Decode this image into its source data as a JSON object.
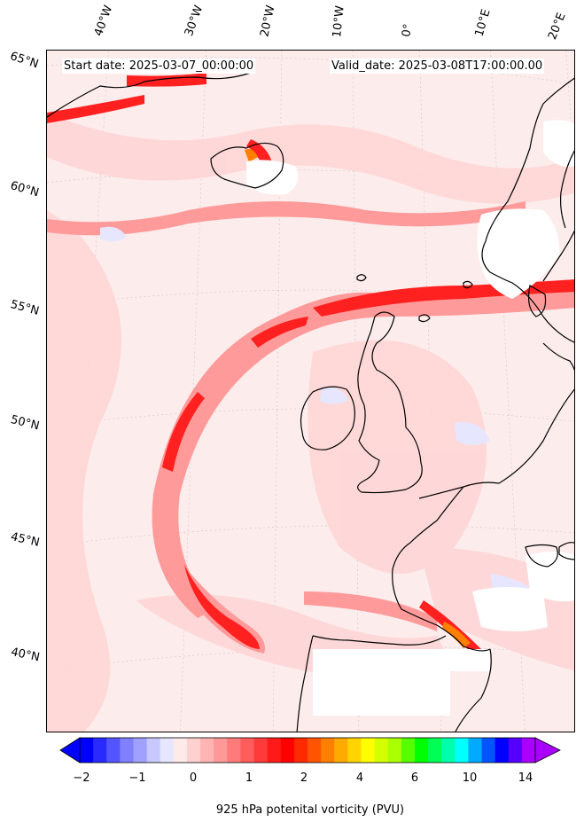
{
  "header": {
    "start_date": "Start date: 2025-03-07_00:00:00",
    "valid_date": "Valid_date: 2025-03-08T17:00:00.00"
  },
  "longitude_labels": [
    "40°W",
    "30°W",
    "20°W",
    "10°W",
    "0°",
    "10°E",
    "20°E"
  ],
  "latitude_labels": [
    "65°N",
    "60°N",
    "55°N",
    "50°N",
    "45°N",
    "40°N"
  ],
  "colorbar": {
    "title": "925 hPa potenital vorticity (PVU)",
    "tick_labels": [
      "−2",
      "−1",
      "0",
      "1",
      "2",
      "4",
      "6",
      "10",
      "14"
    ],
    "colors": [
      "#0000ff",
      "#2a2aff",
      "#5555ff",
      "#7f7fff",
      "#a0a0ff",
      "#c8c8ff",
      "#e6e6ff",
      "#ffeaea",
      "#ffd0d0",
      "#ffb4b4",
      "#ff9898",
      "#ff7a7a",
      "#ff5c5c",
      "#ff3a3a",
      "#ff1a1a",
      "#ff0000",
      "#ff2a00",
      "#ff5500",
      "#ff7f00",
      "#ffaa00",
      "#ffd400",
      "#ffff00",
      "#d4ff00",
      "#aaff00",
      "#55ff00",
      "#00ff00",
      "#00ff55",
      "#00ffaa",
      "#00ffff",
      "#00aaff",
      "#0055ff",
      "#0000ff",
      "#5500ff",
      "#aa00ff"
    ]
  },
  "colors": {
    "background": "#fdecec",
    "low_pv": "#ffcccc",
    "mid_pv": "#ff8888",
    "high_pv": "#ff2020",
    "peak_pv": "#ff7f00",
    "negative_pv": "#e6e6ff",
    "coastline": "#000000",
    "masked_terrain": "#ffffff"
  }
}
